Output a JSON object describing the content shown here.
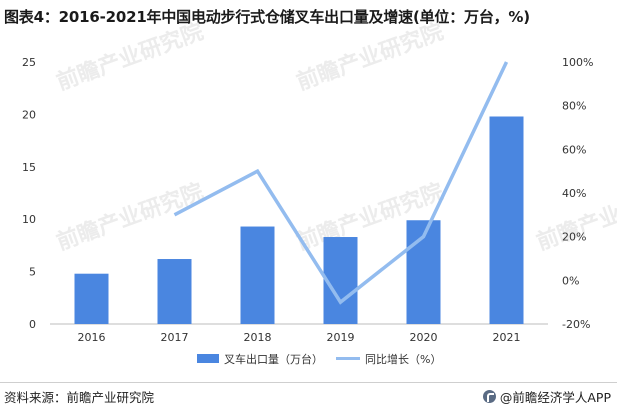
{
  "title": "图表4：2016-2021年中国电动步行式仓储叉车出口量及增速(单位：万台，%)",
  "source_label": "资料来源：前瞻产业研究院",
  "brand": "@前瞻经济学人APP",
  "watermark": "前瞻产业研究院",
  "colors": {
    "bar": "#4a86e0",
    "line": "#93bcef",
    "axis": "#bdbdbd",
    "text": "#333333"
  },
  "chart_data": {
    "type": "bar",
    "categories": [
      "2016",
      "2017",
      "2018",
      "2019",
      "2020",
      "2021"
    ],
    "series": [
      {
        "name": "叉车出口量（万台）",
        "type": "bar",
        "axis": "left",
        "values": [
          4.8,
          6.2,
          9.3,
          8.3,
          9.9,
          19.8
        ]
      },
      {
        "name": "同比增长（%）",
        "type": "line",
        "axis": "right",
        "values": [
          null,
          30,
          50,
          -10,
          20,
          100
        ]
      }
    ],
    "y_left": {
      "min": 0,
      "max": 25,
      "ticks": [
        "0",
        "5",
        "10",
        "15",
        "20",
        "25"
      ]
    },
    "y_right": {
      "min": -20,
      "max": 100,
      "ticks": [
        "-20%",
        "0%",
        "20%",
        "40%",
        "60%",
        "80%",
        "100%"
      ]
    },
    "legend_position": "bottom-center"
  }
}
